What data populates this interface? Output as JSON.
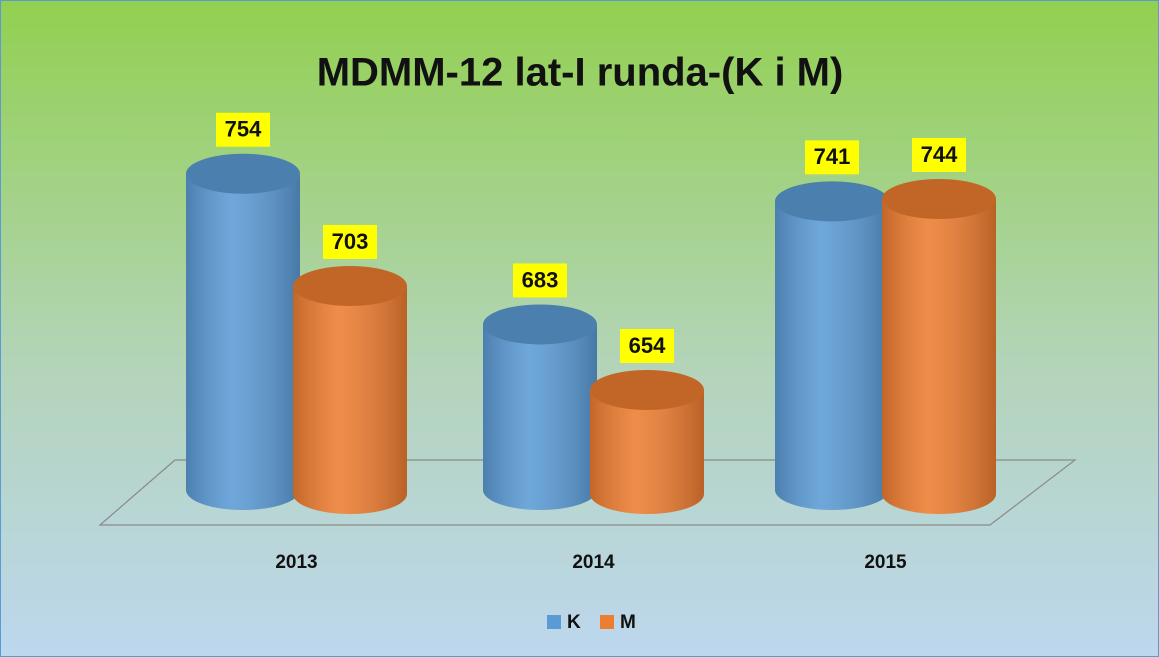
{
  "chart_data": {
    "type": "bar",
    "title": "MDMM-12 lat-I runda-(K i M)",
    "categories": [
      "2013",
      "2014",
      "2015"
    ],
    "series": [
      {
        "name": "K",
        "color": "#5b9bd5",
        "values": [
          754,
          683,
          741
        ]
      },
      {
        "name": "M",
        "color": "#ed7d31",
        "values": [
          703,
          654,
          744
        ]
      }
    ],
    "ylim": [
      605,
      760
    ],
    "legend": "bottom"
  }
}
